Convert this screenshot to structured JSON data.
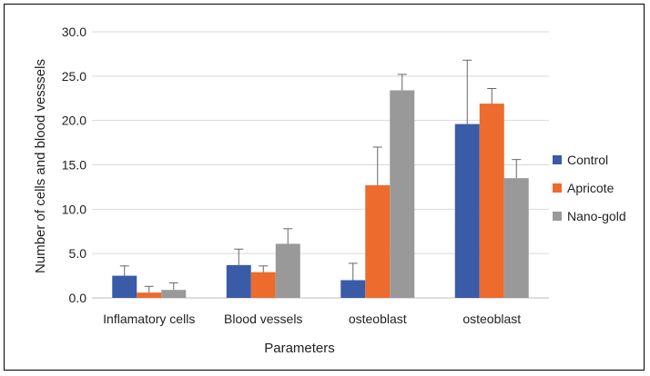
{
  "chart_data": {
    "type": "bar",
    "title": "",
    "xlabel": "Parameters",
    "ylabel": "Number of cells and blood vesssels",
    "ylim": [
      0,
      30
    ],
    "yticks": [
      "0.0",
      "5.0",
      "10.0",
      "15.0",
      "20.0",
      "25.0",
      "30.0"
    ],
    "grid": true,
    "legend_position": "right",
    "categories": [
      "Inflamatory cells",
      "Blood vessels",
      "osteoblast",
      "osteoblast"
    ],
    "series": [
      {
        "name": "Control",
        "color": "#3a5ba8",
        "values": [
          2.5,
          3.7,
          2.0,
          19.6
        ],
        "errors": [
          1.1,
          1.8,
          1.9,
          7.2
        ]
      },
      {
        "name": "Apricote",
        "color": "#ec6b2d",
        "values": [
          0.6,
          2.9,
          12.7,
          21.9
        ],
        "errors": [
          0.7,
          0.7,
          4.3,
          1.7
        ]
      },
      {
        "name": "Nano-gold",
        "color": "#999999",
        "values": [
          0.9,
          6.1,
          23.4,
          13.5
        ],
        "errors": [
          0.8,
          1.7,
          1.8,
          2.1
        ]
      }
    ]
  }
}
